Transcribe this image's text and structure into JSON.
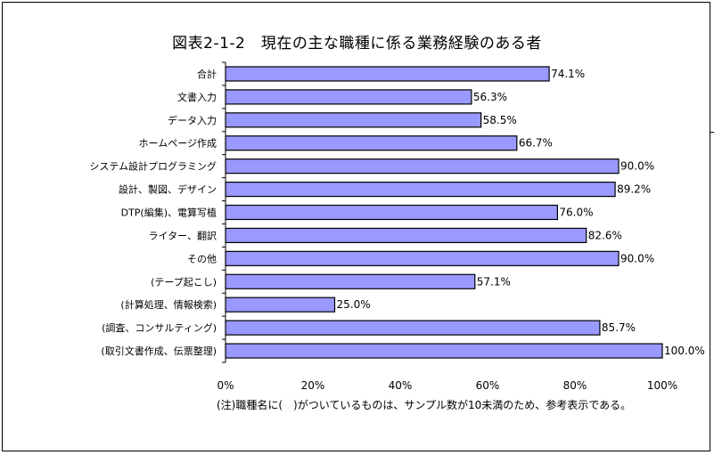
{
  "chart_data": {
    "type": "bar",
    "orientation": "horizontal",
    "title": "図表2-1-2　現在の主な職種に係る業務経験のある者",
    "categories": [
      "合計",
      "文書入力",
      "データ入力",
      "ホームページ作成",
      "システム設計プログラミング",
      "設計、製図、デザイン",
      "DTP(編集)、電算写植",
      "ライター、翻訳",
      "その他",
      "(テープ起こし)",
      "(計算処理、情報検索)",
      "(調査、コンサルティング)",
      "(取引文書作成、伝票整理)"
    ],
    "values": [
      74.1,
      56.3,
      58.5,
      66.7,
      90.0,
      89.2,
      76.0,
      82.6,
      90.0,
      57.1,
      25.0,
      85.7,
      100.0
    ],
    "value_labels": [
      "74.1%",
      "56.3%",
      "58.5%",
      "66.7%",
      "90.0%",
      "89.2%",
      "76.0%",
      "82.6%",
      "90.0%",
      "57.1%",
      "25.0%",
      "85.7%",
      "100.0%"
    ],
    "xlim": [
      0,
      100
    ],
    "xticks": [
      0,
      20,
      40,
      60,
      80,
      100
    ],
    "xtick_labels": [
      "0%",
      "20%",
      "40%",
      "60%",
      "80%",
      "100%"
    ],
    "xlabel": "",
    "ylabel": "",
    "grid": false,
    "legend": "none",
    "bar_color": "#9999ff",
    "bar_edge_color": "#000000"
  },
  "footnote": "(注)職種名に(　)がついているものは、サンプル数が10未満のため、参考表示である。"
}
